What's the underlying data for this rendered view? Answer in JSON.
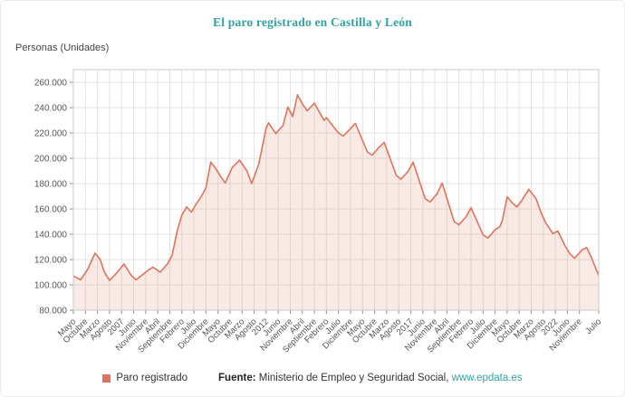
{
  "title": "El paro registrado en Castilla y León",
  "y_axis_title": "Personas (Unidades)",
  "legend": {
    "label": "Paro registrado"
  },
  "source": {
    "prefix": "Fuente:",
    "text": " Ministerio de Empleo y Seguridad Social, ",
    "link": "www.epdata.es"
  },
  "colors": {
    "accent": "#e0735a",
    "title": "#30a3a3",
    "link": "#30a3a3",
    "grid": "#e3e3e3",
    "axis_border": "#c9c9c9",
    "tick": "#8a8a8a",
    "label_text": "#555555",
    "area_fill": "rgba(224,115,90,0.15)"
  },
  "chart_data": {
    "type": "area",
    "title": "El paro registrado en Castilla y León",
    "series_name": "Paro registrado",
    "xlabel": "",
    "ylabel": "Personas (Unidades)",
    "x_unit": "month_index_from_Mayo_2005",
    "x_domain": [
      0,
      218
    ],
    "y_domain": [
      80000,
      270000
    ],
    "grid": true,
    "legend_position": "bottom",
    "y_ticks": [
      {
        "value": 80000,
        "label": "80.000"
      },
      {
        "value": 100000,
        "label": "100.000"
      },
      {
        "value": 120000,
        "label": "120.000"
      },
      {
        "value": 140000,
        "label": "140.000"
      },
      {
        "value": 160000,
        "label": "160.000"
      },
      {
        "value": 180000,
        "label": "180.000"
      },
      {
        "value": 200000,
        "label": "200.000"
      },
      {
        "value": 220000,
        "label": "220.000"
      },
      {
        "value": 240000,
        "label": "240.000"
      },
      {
        "value": 260000,
        "label": "260.000"
      }
    ],
    "x_ticks": [
      {
        "x": 0,
        "label": "Mayo"
      },
      {
        "x": 5,
        "label": "Octubre"
      },
      {
        "x": 10,
        "label": "Marzo"
      },
      {
        "x": 15,
        "label": "Agosto"
      },
      {
        "x": 20,
        "label": "2007"
      },
      {
        "x": 25,
        "label": "Junio"
      },
      {
        "x": 30,
        "label": "Noviembre"
      },
      {
        "x": 35,
        "label": "Abril"
      },
      {
        "x": 40,
        "label": "Septiembre"
      },
      {
        "x": 45,
        "label": "Febrero"
      },
      {
        "x": 50,
        "label": "Julio"
      },
      {
        "x": 55,
        "label": "Diciembre"
      },
      {
        "x": 60,
        "label": "Mayo"
      },
      {
        "x": 65,
        "label": "Octubre"
      },
      {
        "x": 70,
        "label": "Marzo"
      },
      {
        "x": 75,
        "label": "Agosto"
      },
      {
        "x": 80,
        "label": "2012"
      },
      {
        "x": 85,
        "label": "Junio"
      },
      {
        "x": 90,
        "label": "Noviembre"
      },
      {
        "x": 95,
        "label": "Abril"
      },
      {
        "x": 100,
        "label": "Septiembre"
      },
      {
        "x": 105,
        "label": "Febrero"
      },
      {
        "x": 110,
        "label": "Julio"
      },
      {
        "x": 115,
        "label": "Diciembre"
      },
      {
        "x": 120,
        "label": "Mayo"
      },
      {
        "x": 125,
        "label": "Octubre"
      },
      {
        "x": 130,
        "label": "Marzo"
      },
      {
        "x": 135,
        "label": "Agosto"
      },
      {
        "x": 140,
        "label": "2017"
      },
      {
        "x": 145,
        "label": "Junio"
      },
      {
        "x": 150,
        "label": "Noviembre"
      },
      {
        "x": 155,
        "label": "Abril"
      },
      {
        "x": 160,
        "label": "Septiembre"
      },
      {
        "x": 165,
        "label": "Febrero"
      },
      {
        "x": 170,
        "label": "Julio"
      },
      {
        "x": 175,
        "label": "Diciembre"
      },
      {
        "x": 180,
        "label": "Mayo"
      },
      {
        "x": 185,
        "label": "Octubre"
      },
      {
        "x": 190,
        "label": "Marzo"
      },
      {
        "x": 195,
        "label": "Agosto"
      },
      {
        "x": 200,
        "label": "2022"
      },
      {
        "x": 205,
        "label": "Junio"
      },
      {
        "x": 210,
        "label": "Noviembre"
      },
      {
        "x": 218,
        "label": "Julio"
      }
    ],
    "points": [
      [
        0,
        107000
      ],
      [
        3,
        104000
      ],
      [
        6,
        112500
      ],
      [
        9,
        125000
      ],
      [
        11,
        120500
      ],
      [
        13,
        109500
      ],
      [
        15,
        103500
      ],
      [
        18,
        109500
      ],
      [
        21,
        116500
      ],
      [
        24,
        107500
      ],
      [
        26,
        104000
      ],
      [
        29,
        108500
      ],
      [
        31,
        111500
      ],
      [
        33,
        114000
      ],
      [
        36,
        110000
      ],
      [
        39,
        116500
      ],
      [
        41,
        123500
      ],
      [
        43,
        142000
      ],
      [
        45,
        155000
      ],
      [
        47,
        161500
      ],
      [
        49,
        157500
      ],
      [
        51,
        164000
      ],
      [
        53,
        169500
      ],
      [
        55,
        176500
      ],
      [
        57,
        197000
      ],
      [
        59,
        192000
      ],
      [
        61,
        186000
      ],
      [
        63,
        180500
      ],
      [
        66,
        193000
      ],
      [
        69,
        198500
      ],
      [
        72,
        190000
      ],
      [
        74,
        180000
      ],
      [
        77,
        196000
      ],
      [
        80,
        224000
      ],
      [
        81,
        228000
      ],
      [
        84,
        219500
      ],
      [
        87,
        226000
      ],
      [
        89,
        240500
      ],
      [
        91,
        233000
      ],
      [
        93,
        250000
      ],
      [
        95,
        243000
      ],
      [
        97,
        237500
      ],
      [
        100,
        243500
      ],
      [
        104,
        230000
      ],
      [
        105,
        232000
      ],
      [
        110,
        220000
      ],
      [
        112,
        217500
      ],
      [
        115,
        223500
      ],
      [
        117,
        227500
      ],
      [
        122,
        205000
      ],
      [
        124,
        202500
      ],
      [
        127,
        209000
      ],
      [
        129,
        212500
      ],
      [
        134,
        186500
      ],
      [
        136,
        183500
      ],
      [
        139,
        190000
      ],
      [
        141,
        197000
      ],
      [
        146,
        168000
      ],
      [
        148,
        165500
      ],
      [
        151,
        172000
      ],
      [
        153,
        180500
      ],
      [
        158,
        150000
      ],
      [
        160,
        147500
      ],
      [
        163,
        154000
      ],
      [
        165,
        161000
      ],
      [
        170,
        139500
      ],
      [
        172,
        137000
      ],
      [
        175,
        143500
      ],
      [
        177,
        146000
      ],
      [
        178,
        151000
      ],
      [
        180,
        169500
      ],
      [
        182,
        165000
      ],
      [
        184,
        161500
      ],
      [
        186,
        166500
      ],
      [
        189,
        175500
      ],
      [
        192,
        168000
      ],
      [
        194,
        157500
      ],
      [
        196,
        149000
      ],
      [
        199,
        140500
      ],
      [
        201,
        142500
      ],
      [
        204,
        131000
      ],
      [
        206,
        124500
      ],
      [
        208,
        121000
      ],
      [
        211,
        127500
      ],
      [
        213,
        129500
      ],
      [
        215,
        121500
      ],
      [
        217,
        112000
      ],
      [
        218,
        107500
      ]
    ]
  }
}
